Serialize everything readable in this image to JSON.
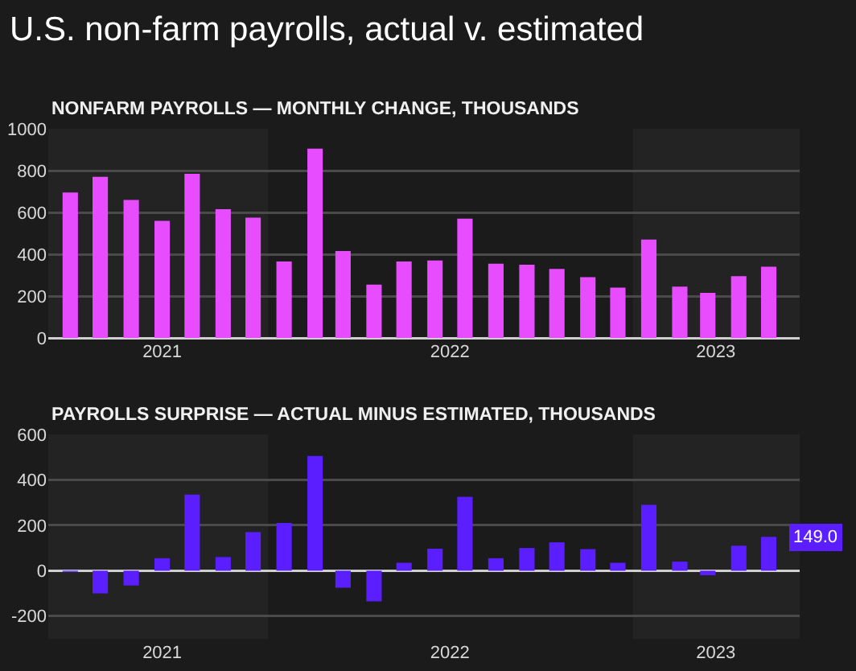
{
  "chart_data": [
    {
      "type": "bar",
      "title": "U.S. non-farm payrolls, actual v. estimated",
      "subtitle": "NONFARM PAYROLLS — MONTHLY CHANGE, THOUSANDS",
      "x": [
        "2021-06",
        "2021-07",
        "2021-08",
        "2021-09",
        "2021-10",
        "2021-11",
        "2021-12",
        "2022-01",
        "2022-02",
        "2022-03",
        "2022-04",
        "2022-05",
        "2022-06",
        "2022-07",
        "2022-08",
        "2022-09",
        "2022-10",
        "2022-11",
        "2022-12",
        "2023-01",
        "2023-02",
        "2023-03",
        "2023-04",
        "2023-05"
      ],
      "series": [
        {
          "color": "#e74cff",
          "values": [
            695,
            770,
            660,
            560,
            785,
            615,
            575,
            365,
            905,
            415,
            255,
            365,
            370,
            570,
            355,
            350,
            330,
            290,
            240,
            470,
            245,
            215,
            295,
            340
          ]
        }
      ],
      "xlim": [
        "2021-05-10",
        "2023-06-01"
      ],
      "xticks": [
        {
          "value": "2021-09-01",
          "label": "2021"
        },
        {
          "value": "2022-06-16",
          "label": "2022"
        },
        {
          "value": "2023-03-09",
          "label": "2023"
        }
      ],
      "ylim": [
        0,
        1000
      ],
      "yticks": [
        0,
        200,
        400,
        600,
        800,
        1000
      ],
      "grid": "y",
      "bands": [
        {
          "axis": "x",
          "from": "2021-05-10",
          "to": "2021-12-16",
          "color": "#232323"
        },
        {
          "axis": "x",
          "from": "2022-12-16",
          "to": "2023-06-01",
          "color": "#232323"
        }
      ]
    },
    {
      "type": "bar",
      "title": "PAYROLLS SURPRISE — ACTUAL MINUS ESTIMATED, THOUSANDS",
      "x": [
        "2021-06",
        "2021-07",
        "2021-08",
        "2021-09",
        "2021-10",
        "2021-11",
        "2021-12",
        "2022-01",
        "2022-02",
        "2022-03",
        "2022-04",
        "2022-05",
        "2022-06",
        "2022-07",
        "2022-08",
        "2022-09",
        "2022-10",
        "2022-11",
        "2022-12",
        "2023-01",
        "2023-02",
        "2023-03",
        "2023-04",
        "2023-05"
      ],
      "series": [
        {
          "color": "#5a1eff",
          "values": [
            -5,
            -100,
            -65,
            55,
            335,
            60,
            170,
            210,
            505,
            -75,
            -135,
            35,
            97,
            325,
            55,
            100,
            125,
            95,
            35,
            290,
            40,
            -20,
            110,
            149
          ]
        }
      ],
      "xlim": [
        "2021-05-10",
        "2023-06-01"
      ],
      "xticks": [
        {
          "value": "2021-09-01",
          "label": "2021"
        },
        {
          "value": "2022-06-16",
          "label": "2022"
        },
        {
          "value": "2023-03-09",
          "label": "2023"
        }
      ],
      "ylim": [
        -300,
        600
      ],
      "yticks": [
        -200,
        0,
        200,
        400,
        600
      ],
      "grid": "y",
      "bands": [
        {
          "axis": "x",
          "from": "2021-05-10",
          "to": "2021-12-16",
          "color": "#232323"
        },
        {
          "axis": "x",
          "from": "2022-12-16",
          "to": "2023-06-01",
          "color": "#232323"
        }
      ],
      "annotations": [
        {
          "text": "149.0",
          "x": "2023-05",
          "y": 149
        }
      ]
    }
  ]
}
